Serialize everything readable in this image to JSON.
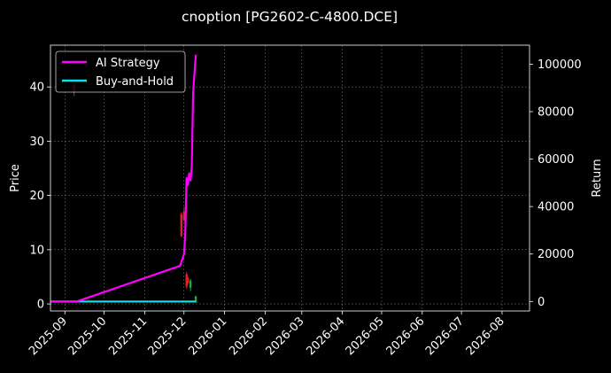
{
  "chart_data": {
    "type": "line",
    "title": "cnoption [PG2602-C-4800.DCE]",
    "ylabel_left": "Price",
    "ylabel_right": "Return",
    "xlim": [
      "2025-08-21",
      "2026-08-22"
    ],
    "ylim_left": [
      -1.3,
      47.7
    ],
    "ylim_right": [
      -4000,
      108000
    ],
    "x_tick_labels": [
      "2025-09",
      "2025-10",
      "2025-11",
      "2025-12",
      "2026-01",
      "2026-02",
      "2026-03",
      "2026-04",
      "2026-05",
      "2026-06",
      "2026-07",
      "2026-08"
    ],
    "x_tick_dates": [
      "2025-09-01",
      "2025-10-01",
      "2025-11-01",
      "2025-12-01",
      "2026-01-01",
      "2026-02-01",
      "2026-03-01",
      "2026-04-01",
      "2026-05-01",
      "2026-06-01",
      "2026-07-01",
      "2026-08-01"
    ],
    "y_left_ticks": [
      0,
      10,
      20,
      30,
      40
    ],
    "y_right_ticks": [
      0,
      20000,
      40000,
      60000,
      80000,
      100000
    ],
    "grid": true,
    "legend_position": "top-left",
    "series": [
      {
        "name": "AI Strategy",
        "axis": "right",
        "color": "#ff00ff",
        "points": [
          {
            "x": "2025-08-21",
            "y": 0
          },
          {
            "x": "2025-09-10",
            "y": 0
          },
          {
            "x": "2025-11-28",
            "y": 15000
          },
          {
            "x": "2025-12-01",
            "y": 20000
          },
          {
            "x": "2025-12-02",
            "y": 28000
          },
          {
            "x": "2025-12-03",
            "y": 52000
          },
          {
            "x": "2025-12-04",
            "y": 49000
          },
          {
            "x": "2025-12-05",
            "y": 54000
          },
          {
            "x": "2025-12-06",
            "y": 51000
          },
          {
            "x": "2025-12-07",
            "y": 57000
          },
          {
            "x": "2025-12-08",
            "y": 88000
          },
          {
            "x": "2025-12-10",
            "y": 104000
          }
        ]
      },
      {
        "name": "Buy-and-Hold",
        "axis": "right",
        "color": "#00e5ee",
        "points": [
          {
            "x": "2025-08-21",
            "y": 0
          },
          {
            "x": "2025-12-10",
            "y": 0
          }
        ]
      }
    ],
    "candles": [
      {
        "x": "2025-09-08",
        "open": 40.5,
        "close": 39.0,
        "high": 40.8,
        "low": 38.3,
        "color": "#e62020"
      },
      {
        "x": "2025-11-29",
        "open": 16.5,
        "close": 12.5,
        "high": 16.9,
        "low": 12.3,
        "color": "#e62020"
      },
      {
        "x": "2025-12-01",
        "open": 17.0,
        "close": 15.5,
        "high": 17.8,
        "low": 15.2,
        "color": "#e62020"
      },
      {
        "x": "2025-12-03",
        "open": 5.5,
        "close": 3.2,
        "high": 5.9,
        "low": 2.8,
        "color": "#e62020"
      },
      {
        "x": "2025-12-04",
        "open": 4.8,
        "close": 3.9,
        "high": 5.1,
        "low": 3.6,
        "color": "#e62020"
      },
      {
        "x": "2025-12-06",
        "open": 3.0,
        "close": 4.3,
        "high": 4.6,
        "low": 2.4,
        "color": "#22aa44"
      },
      {
        "x": "2025-12-10",
        "open": 0.3,
        "close": 1.4,
        "high": 1.5,
        "low": 0.2,
        "color": "#22aa44"
      }
    ]
  }
}
